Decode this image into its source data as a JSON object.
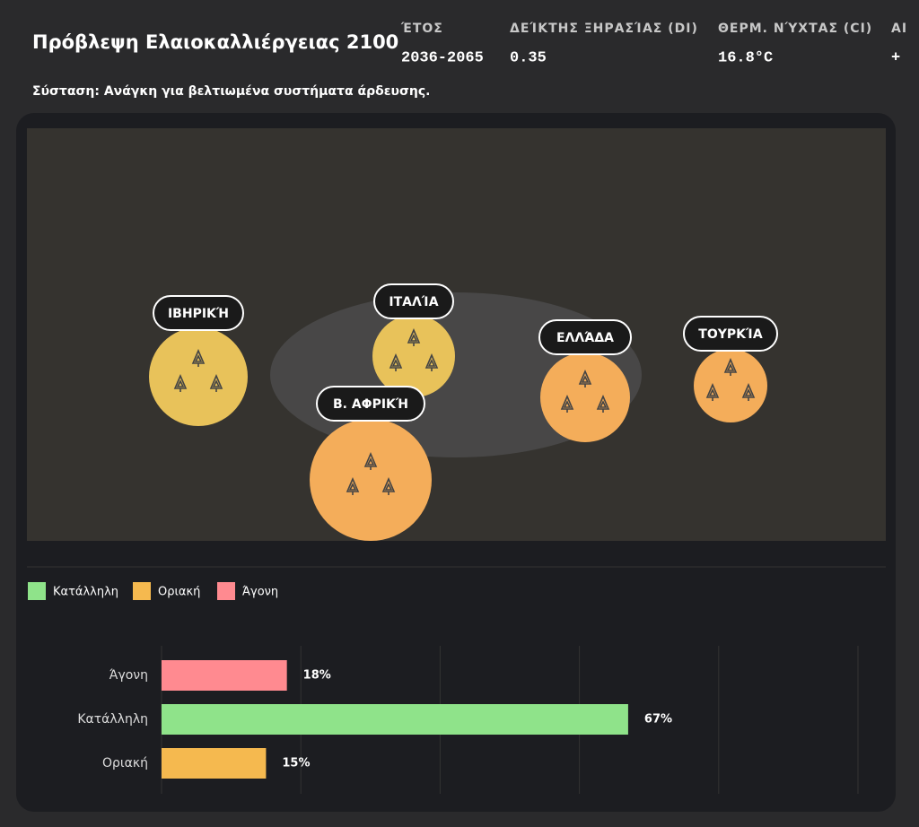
{
  "header": {
    "title": "Πρόβλεψη Ελαιοκαλλιέργειας 2100",
    "stats": [
      {
        "label": "ΈΤΟΣ",
        "value": "2036-2065"
      },
      {
        "label": "ΔΕΊΚΤΗΣ ΞΗΡΑΣΊΑΣ (DI)",
        "value": "0.35"
      },
      {
        "label": "ΘΕΡΜ. ΝΎΧΤΑΣ (CI)",
        "value": "16.8°C"
      },
      {
        "label": "ΑΙ",
        "value": "+"
      }
    ],
    "recommendation": "Σύσταση: Ανάγκη για βελτιωμένα συστήματα άρδευσης."
  },
  "map": {
    "regions": [
      {
        "label": "ΙΒΗΡΙΚΉ"
      },
      {
        "label": "ΙΤΑΛΊΑ"
      },
      {
        "label": "Β. ΑΦΡΙΚΉ"
      },
      {
        "label": "ΕΛΛΆΔΑ"
      },
      {
        "label": "ΤΟΥΡΚΊΑ"
      }
    ]
  },
  "legend": [
    {
      "name": "Κατάλληλη",
      "color": "#8fe38a"
    },
    {
      "name": "Οριακή",
      "color": "#f5b94f"
    },
    {
      "name": "Άγονη",
      "color": "#ff8a90"
    }
  ],
  "bar_chart": {
    "type": "bar",
    "categories": [
      "Άγονη",
      "Κατάλληλη",
      "Οριακή"
    ],
    "values": [
      18,
      67,
      15
    ],
    "value_labels": [
      "18%",
      "67%",
      "15%"
    ],
    "colors": [
      "#ff8a90",
      "#8fe38a",
      "#f5b94f"
    ],
    "xlim": [
      0,
      100
    ],
    "xticks": [
      0,
      20,
      40,
      60,
      80,
      100
    ],
    "grid": true
  }
}
